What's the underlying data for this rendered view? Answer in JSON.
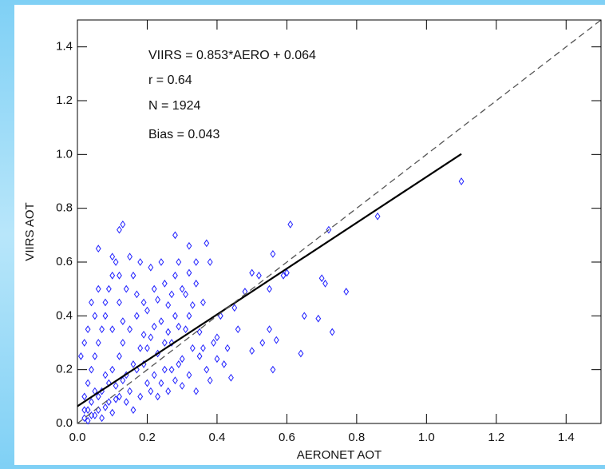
{
  "chart_data": {
    "type": "scatter",
    "xlabel": "AERONET AOT",
    "ylabel": "VIIRS AOT",
    "annotations": [
      "VIIRS = 0.853*AERO + 0.064",
      "r =  0.64",
      "N = 1924",
      "Bias = 0.043"
    ],
    "xlim": [
      0,
      1.5
    ],
    "ylim": [
      0,
      1.5
    ],
    "xticks": [
      {
        "value": 0,
        "label": "0.0"
      },
      0.2,
      0.4,
      0.6,
      0.8,
      {
        "value": 1,
        "label": "1.0"
      },
      1.2,
      1.4
    ],
    "yticks": [
      {
        "value": 0,
        "label": "0.0"
      },
      0.2,
      0.4,
      0.6,
      0.8,
      {
        "value": 1,
        "label": "1.0"
      },
      1.2,
      1.4
    ],
    "series": [
      {
        "color": "#2020ff",
        "x": [
          0.02,
          0.03,
          0.04,
          0.05,
          0.06,
          0.07,
          0.08,
          0.09,
          0.1,
          0.11,
          0.12,
          0.13,
          0.14,
          0.15,
          0.16,
          0.17,
          0.18,
          0.19,
          0.2,
          0.21,
          0.22,
          0.23,
          0.24,
          0.25,
          0.26,
          0.27,
          0.28,
          0.29,
          0.3,
          0.31,
          0.32,
          0.33,
          0.34,
          0.35,
          0.36,
          0.37,
          0.38,
          0.39,
          0.4,
          0.02,
          0.03,
          0.04,
          0.05,
          0.06,
          0.07,
          0.08,
          0.09,
          0.1,
          0.11,
          0.12,
          0.13,
          0.14,
          0.15,
          0.16,
          0.17,
          0.18,
          0.19,
          0.2,
          0.21,
          0.22,
          0.23,
          0.24,
          0.25,
          0.26,
          0.27,
          0.28,
          0.29,
          0.3,
          0.31,
          0.32,
          0.33,
          0.34,
          0.35,
          0.02,
          0.03,
          0.04,
          0.05,
          0.06,
          0.07,
          0.08,
          0.09,
          0.1,
          0.11,
          0.12,
          0.13,
          0.14,
          0.15,
          0.16,
          0.17,
          0.18,
          0.19,
          0.2,
          0.21,
          0.22,
          0.23,
          0.24,
          0.25,
          0.26,
          0.27,
          0.28,
          0.29,
          0.3,
          0.32,
          0.34,
          0.36,
          0.38,
          0.4,
          0.42,
          0.43,
          0.01,
          0.02,
          0.03,
          0.04,
          0.05,
          0.06,
          0.08,
          0.1,
          0.1,
          0.12,
          1.1,
          0.86,
          0.72,
          0.61,
          0.77,
          0.7,
          0.71,
          0.65,
          0.69,
          0.73,
          0.64,
          0.56,
          0.57,
          0.55,
          0.55,
          0.56,
          0.5,
          0.52,
          0.59,
          0.6,
          0.48,
          0.13,
          0.12,
          0.28,
          0.32,
          0.37,
          0.06,
          0.5,
          0.53,
          0.46,
          0.45,
          0.41,
          0.44
        ],
        "values": [
          0.02,
          0.05,
          0.08,
          0.03,
          0.1,
          0.12,
          0.06,
          0.15,
          0.2,
          0.09,
          0.25,
          0.3,
          0.18,
          0.35,
          0.22,
          0.4,
          0.28,
          0.45,
          0.15,
          0.32,
          0.5,
          0.26,
          0.38,
          0.2,
          0.44,
          0.3,
          0.55,
          0.36,
          0.24,
          0.48,
          0.4,
          0.28,
          0.52,
          0.34,
          0.45,
          0.2,
          0.6,
          0.3,
          0.24,
          0.1,
          0.15,
          0.2,
          0.25,
          0.3,
          0.35,
          0.4,
          0.5,
          0.55,
          0.6,
          0.45,
          0.38,
          0.5,
          0.62,
          0.55,
          0.48,
          0.6,
          0.33,
          0.42,
          0.58,
          0.36,
          0.46,
          0.6,
          0.52,
          0.34,
          0.48,
          0.4,
          0.6,
          0.5,
          0.35,
          0.56,
          0.44,
          0.6,
          0.25,
          0.05,
          0.01,
          0.03,
          0.12,
          0.05,
          0.02,
          0.18,
          0.08,
          0.04,
          0.14,
          0.1,
          0.16,
          0.08,
          0.12,
          0.05,
          0.2,
          0.1,
          0.22,
          0.28,
          0.12,
          0.18,
          0.1,
          0.15,
          0.3,
          0.12,
          0.2,
          0.16,
          0.22,
          0.14,
          0.18,
          0.12,
          0.28,
          0.16,
          0.32,
          0.22,
          0.28,
          0.25,
          0.3,
          0.35,
          0.45,
          0.4,
          0.5,
          0.45,
          0.35,
          0.62,
          0.55,
          0.9,
          0.77,
          0.72,
          0.74,
          0.49,
          0.54,
          0.52,
          0.4,
          0.39,
          0.34,
          0.26,
          0.2,
          0.31,
          0.35,
          0.5,
          0.63,
          0.56,
          0.55,
          0.55,
          0.56,
          0.49,
          0.74,
          0.72,
          0.7,
          0.66,
          0.67,
          0.65,
          0.27,
          0.3,
          0.35,
          0.43,
          0.4,
          0.17
        ]
      },
      {
        "type": "line",
        "color": "#000000",
        "x": [
          0,
          1.1
        ],
        "values": [
          0.064,
          1.002
        ]
      },
      {
        "type": "line",
        "color": "#555555",
        "dashed": true,
        "x": [
          0,
          1.5
        ],
        "values": [
          0,
          1.5
        ]
      }
    ]
  }
}
